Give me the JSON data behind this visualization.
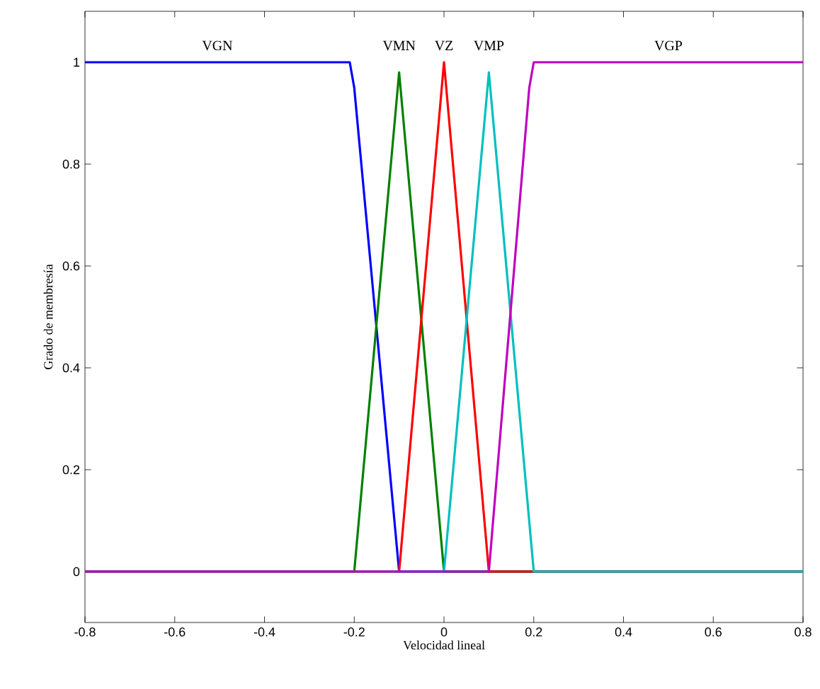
{
  "chart_data": {
    "type": "line",
    "xlabel": "Velocidad lineal",
    "ylabel": "Grado de membresía",
    "xlim": [
      -0.8,
      0.8
    ],
    "ylim": [
      -0.1,
      1.1
    ],
    "xticks": [
      -0.8,
      -0.6,
      -0.4,
      -0.2,
      0,
      0.2,
      0.4,
      0.6,
      0.8
    ],
    "yticks": [
      0,
      0.2,
      0.4,
      0.6,
      0.8,
      1
    ],
    "grid": false,
    "legend": false,
    "marker": "none",
    "line_style": "solid",
    "series": [
      {
        "name": "VGN",
        "color": "#0000ff",
        "x": [
          -0.8,
          -0.21,
          -0.2,
          -0.1,
          0.8
        ],
        "values": [
          1,
          1,
          0.95,
          0,
          0
        ]
      },
      {
        "name": "VMN",
        "color": "#008000",
        "x": [
          -0.8,
          -0.2,
          -0.1,
          0,
          0.8
        ],
        "values": [
          0,
          0,
          0.98,
          0,
          0
        ]
      },
      {
        "name": "VZ",
        "color": "#ff0000",
        "x": [
          -0.8,
          -0.1,
          0,
          0.1,
          0.8
        ],
        "values": [
          0,
          0,
          1,
          0,
          0
        ]
      },
      {
        "name": "VMP",
        "color": "#00bfbf",
        "x": [
          -0.8,
          0,
          0.1,
          0.2,
          0.8
        ],
        "values": [
          0,
          0,
          0.98,
          0,
          0
        ]
      },
      {
        "name": "VGP",
        "color": "#bf00bf",
        "x": [
          -0.8,
          0.1,
          0.19,
          0.2,
          0.8
        ],
        "values": [
          0,
          0,
          0.95,
          1,
          1
        ]
      }
    ]
  }
}
